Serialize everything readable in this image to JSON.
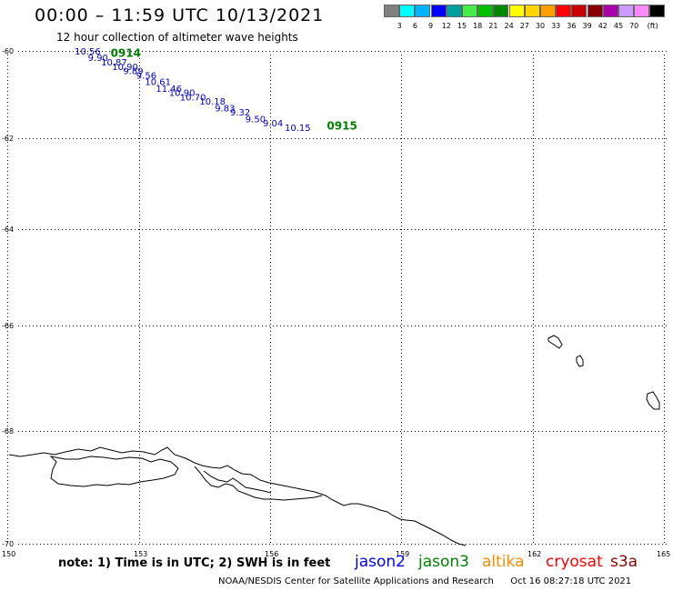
{
  "header": {
    "title": "00:00 – 11:59 UTC 10/13/2021",
    "subtitle": "12 hour collection of altimeter wave heights"
  },
  "legend": {
    "unit": "(ft)",
    "bins": [
      {
        "label": "",
        "color": "#808080"
      },
      {
        "label": "3",
        "color": "#00ffff"
      },
      {
        "label": "6",
        "color": "#00b4ff"
      },
      {
        "label": "9",
        "color": "#0000ff"
      },
      {
        "label": "12",
        "color": "#00a0a0"
      },
      {
        "label": "15",
        "color": "#44ee44"
      },
      {
        "label": "18",
        "color": "#00c000"
      },
      {
        "label": "21",
        "color": "#008800"
      },
      {
        "label": "24",
        "color": "#ffff00"
      },
      {
        "label": "27",
        "color": "#ffd400"
      },
      {
        "label": "30",
        "color": "#ffa000"
      },
      {
        "label": "33",
        "color": "#ff0000"
      },
      {
        "label": "36",
        "color": "#cc0000"
      },
      {
        "label": "39",
        "color": "#880000"
      },
      {
        "label": "42",
        "color": "#aa00aa"
      },
      {
        "label": "45",
        "color": "#cc99ff"
      },
      {
        "label": "70",
        "color": "#ff88ff"
      },
      {
        "label": "",
        "color": "#000000"
      }
    ]
  },
  "map": {
    "lat_labels": [
      "-60",
      "-62",
      "-64",
      "-66",
      "-68",
      "-70"
    ],
    "lon_labels": [
      "150",
      "153",
      "156",
      "159",
      "162",
      "165"
    ],
    "observations": [
      {
        "label": "10.56",
        "lon": 151.7,
        "lat": -60.0
      },
      {
        "label": "9.90",
        "lon": 152.0,
        "lat": -60.15
      },
      {
        "label": "10.87",
        "lon": 152.3,
        "lat": -60.25
      },
      {
        "label": "10.90",
        "lon": 152.55,
        "lat": -60.35
      },
      {
        "label": "9.89",
        "lon": 152.8,
        "lat": -60.45
      },
      {
        "label": "9.56",
        "lon": 153.1,
        "lat": -60.55
      },
      {
        "label": "10.61",
        "lon": 153.3,
        "lat": -60.7
      },
      {
        "label": "11.46",
        "lon": 153.55,
        "lat": -60.85
      },
      {
        "label": "10.90",
        "lon": 153.85,
        "lat": -60.95
      },
      {
        "label": "10.70",
        "lon": 154.1,
        "lat": -61.05
      },
      {
        "label": "10.18",
        "lon": 154.55,
        "lat": -61.15
      },
      {
        "label": "9.83",
        "lon": 154.9,
        "lat": -61.3
      },
      {
        "label": "9.32",
        "lon": 155.25,
        "lat": -61.4
      },
      {
        "label": "9.50",
        "lon": 155.6,
        "lat": -61.55
      },
      {
        "label": "9.04",
        "lon": 156.0,
        "lat": -61.65
      },
      {
        "label": "10.15",
        "lon": 156.5,
        "lat": -61.75
      }
    ],
    "time_labels": [
      {
        "label": "0914",
        "lon": 152.35,
        "lat": -60.03
      },
      {
        "label": "0915",
        "lon": 157.3,
        "lat": -61.7
      }
    ]
  },
  "note": "note:  1) Time is in UTC;  2) SWH is in feet",
  "satellites": [
    {
      "name": "jason2",
      "color": "#0000ff"
    },
    {
      "name": "jason3",
      "color": "#008000"
    },
    {
      "name": "altika",
      "color": "#ff8c00"
    },
    {
      "name": "cryosat",
      "color": "#ff0000"
    },
    {
      "name": "s3a",
      "color": "#8b0000"
    }
  ],
  "footer": {
    "org": "NOAA/NESDIS Center for Satellite Applications and Research",
    "timestamp": "Oct 16 08:27:18 UTC 2021"
  }
}
